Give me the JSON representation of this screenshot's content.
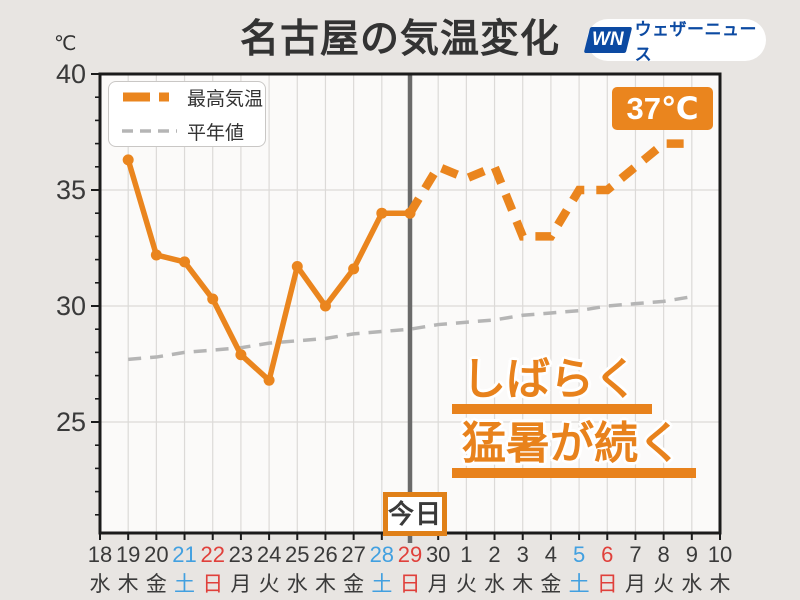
{
  "title": "名古屋の気温変化",
  "unit_label": "℃",
  "logo": {
    "monogram": "WN",
    "text": "ウェザーニュース"
  },
  "legend": {
    "items": [
      {
        "label": "最高気温",
        "style": "orange-thick-dash"
      },
      {
        "label": "平年値",
        "style": "gray-dash"
      }
    ]
  },
  "peak_label": "37℃",
  "today_label": "今日",
  "caption": {
    "lines": [
      "しばらく",
      "猛暑が続く"
    ]
  },
  "colors": {
    "background": "#e8e5e2",
    "plot_background": "#fbfaf9",
    "grid": "#dcdad8",
    "axis": "#1b1b1b",
    "orange": "#ea851e",
    "normal_gray": "#b5b5b5",
    "today_line": "#6a6a6a",
    "text_dark": "#3a3a3a",
    "saturday_blue": "#42a0e0",
    "sunday_red": "#e0403b",
    "logo_blue": "#0c4aa2"
  },
  "chart_data": {
    "type": "line",
    "title": "名古屋の気温変化",
    "ylabel": "℃",
    "ylim": [
      20.2,
      40
    ],
    "yticks": [
      25,
      30,
      35,
      40
    ],
    "grid": true,
    "legend_position": "top-left",
    "x_categories": [
      {
        "date": "18",
        "weekday": "水",
        "type": "weekday"
      },
      {
        "date": "19",
        "weekday": "木",
        "type": "weekday"
      },
      {
        "date": "20",
        "weekday": "金",
        "type": "weekday"
      },
      {
        "date": "21",
        "weekday": "土",
        "type": "saturday"
      },
      {
        "date": "22",
        "weekday": "日",
        "type": "sunday"
      },
      {
        "date": "23",
        "weekday": "月",
        "type": "weekday"
      },
      {
        "date": "24",
        "weekday": "火",
        "type": "weekday"
      },
      {
        "date": "25",
        "weekday": "水",
        "type": "weekday"
      },
      {
        "date": "26",
        "weekday": "木",
        "type": "weekday"
      },
      {
        "date": "27",
        "weekday": "金",
        "type": "weekday"
      },
      {
        "date": "28",
        "weekday": "土",
        "type": "saturday"
      },
      {
        "date": "29",
        "weekday": "日",
        "type": "sunday"
      },
      {
        "date": "30",
        "weekday": "月",
        "type": "weekday"
      },
      {
        "date": "1",
        "weekday": "火",
        "type": "weekday"
      },
      {
        "date": "2",
        "weekday": "水",
        "type": "weekday"
      },
      {
        "date": "3",
        "weekday": "木",
        "type": "weekday"
      },
      {
        "date": "4",
        "weekday": "金",
        "type": "weekday"
      },
      {
        "date": "5",
        "weekday": "土",
        "type": "saturday"
      },
      {
        "date": "6",
        "weekday": "日",
        "type": "sunday"
      },
      {
        "date": "7",
        "weekday": "月",
        "type": "weekday"
      },
      {
        "date": "8",
        "weekday": "火",
        "type": "weekday"
      },
      {
        "date": "9",
        "weekday": "水",
        "type": "weekday"
      },
      {
        "date": "10",
        "weekday": "木",
        "type": "weekday"
      }
    ],
    "today_index": 11,
    "series": [
      {
        "name": "最高気温(実況)",
        "style": "solid-orange-with-markers",
        "start_index": 1,
        "values": [
          36.3,
          32.2,
          31.9,
          30.3,
          27.9,
          26.8,
          31.7,
          30.0,
          31.6,
          34.0,
          34.0
        ]
      },
      {
        "name": "最高気温(予想)",
        "style": "thick-orange-dash",
        "start_index": 11,
        "values": [
          34.0,
          36.0,
          35.5,
          36.0,
          33.0,
          33.0,
          35.0,
          35.0,
          36.0,
          37.0,
          37.0
        ]
      },
      {
        "name": "平年値",
        "style": "gray-dash",
        "start_index": 1,
        "values": [
          27.7,
          27.8,
          28.0,
          28.1,
          28.2,
          28.4,
          28.5,
          28.6,
          28.8,
          28.9,
          29.0,
          29.2,
          29.3,
          29.4,
          29.6,
          29.7,
          29.8,
          30.0,
          30.1,
          30.2,
          30.4
        ]
      }
    ],
    "annotations": [
      {
        "text": "37℃",
        "target": "forecast-peak"
      },
      {
        "text": "今日",
        "target": "today-line"
      },
      {
        "text": "しばらく猛暑が続く",
        "target": "plot-area"
      }
    ]
  }
}
